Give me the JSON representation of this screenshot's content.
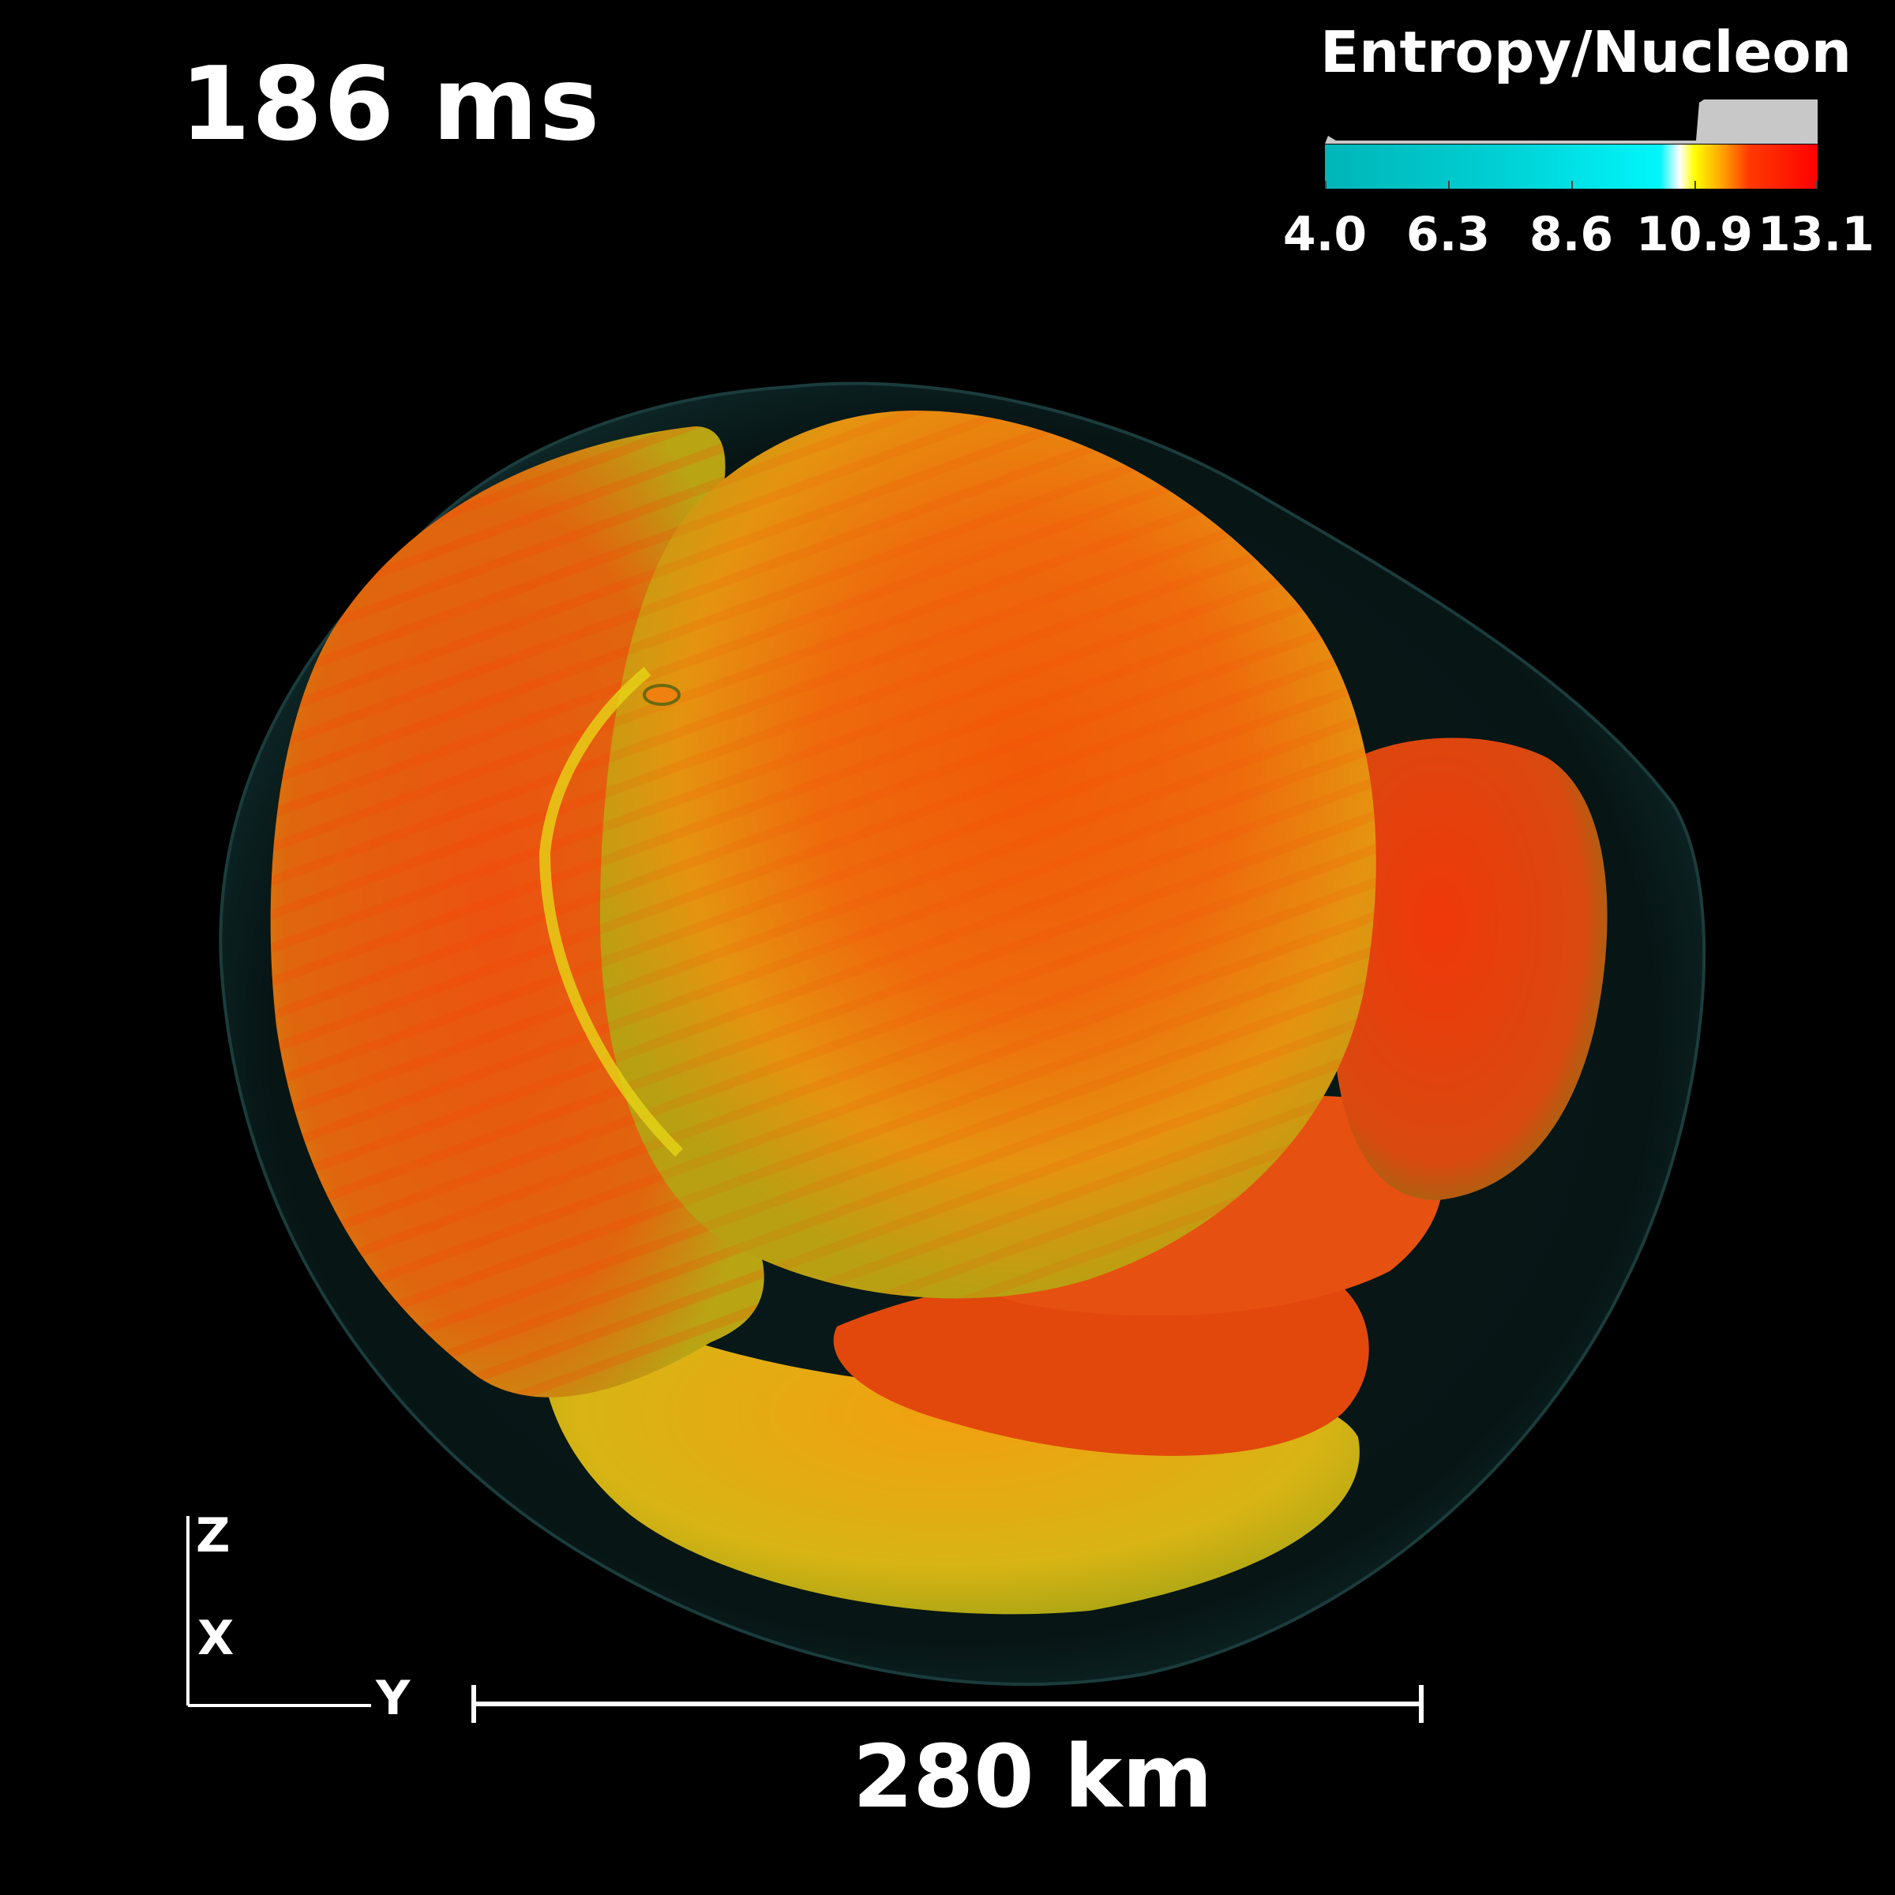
{
  "time_label": "186 ms",
  "colorbar": {
    "title": "Entropy/Nucleon",
    "ticks": [
      "4.0",
      "6.3",
      "8.6",
      "10.9",
      "13.1"
    ],
    "range": [
      4.0,
      13.1
    ],
    "colors": [
      "#00b5b8",
      "#00f6fb",
      "#ffffff",
      "#ffff00",
      "#ff9c00",
      "#ff0000"
    ]
  },
  "axes": {
    "z": "Z",
    "x": "X",
    "y": "Y"
  },
  "scale_bar": {
    "label": "280 km"
  }
}
